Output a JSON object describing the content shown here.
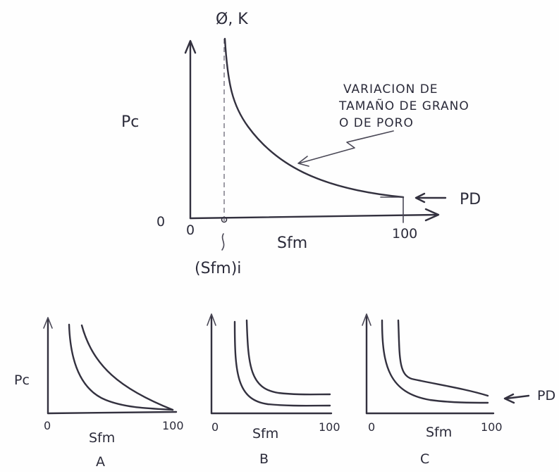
{
  "main_plot": {
    "y_top_label": "Ø, K",
    "y_label": "Pc",
    "x_label": "Sfm",
    "origin_y_label": "0",
    "origin_x_label": "0",
    "x_end_label": "100",
    "irreducible_label": "(Sfm)i",
    "pd_label": "PD",
    "annotation_line1": "VARIACION DE",
    "annotation_line2": "TAMAÑO DE GRANO",
    "annotation_line3": "O DE PORO"
  },
  "small_plots": {
    "y_label": "Pc",
    "pd_label": "PD",
    "a": {
      "x_start": "0",
      "x_label": "Sfm",
      "x_end": "100",
      "caption": "A"
    },
    "b": {
      "x_start": "0",
      "x_label": "Sfm",
      "x_end": "100",
      "caption": "B"
    },
    "c": {
      "x_start": "0",
      "x_label": "Sfm",
      "x_end": "100",
      "caption": "C"
    }
  }
}
